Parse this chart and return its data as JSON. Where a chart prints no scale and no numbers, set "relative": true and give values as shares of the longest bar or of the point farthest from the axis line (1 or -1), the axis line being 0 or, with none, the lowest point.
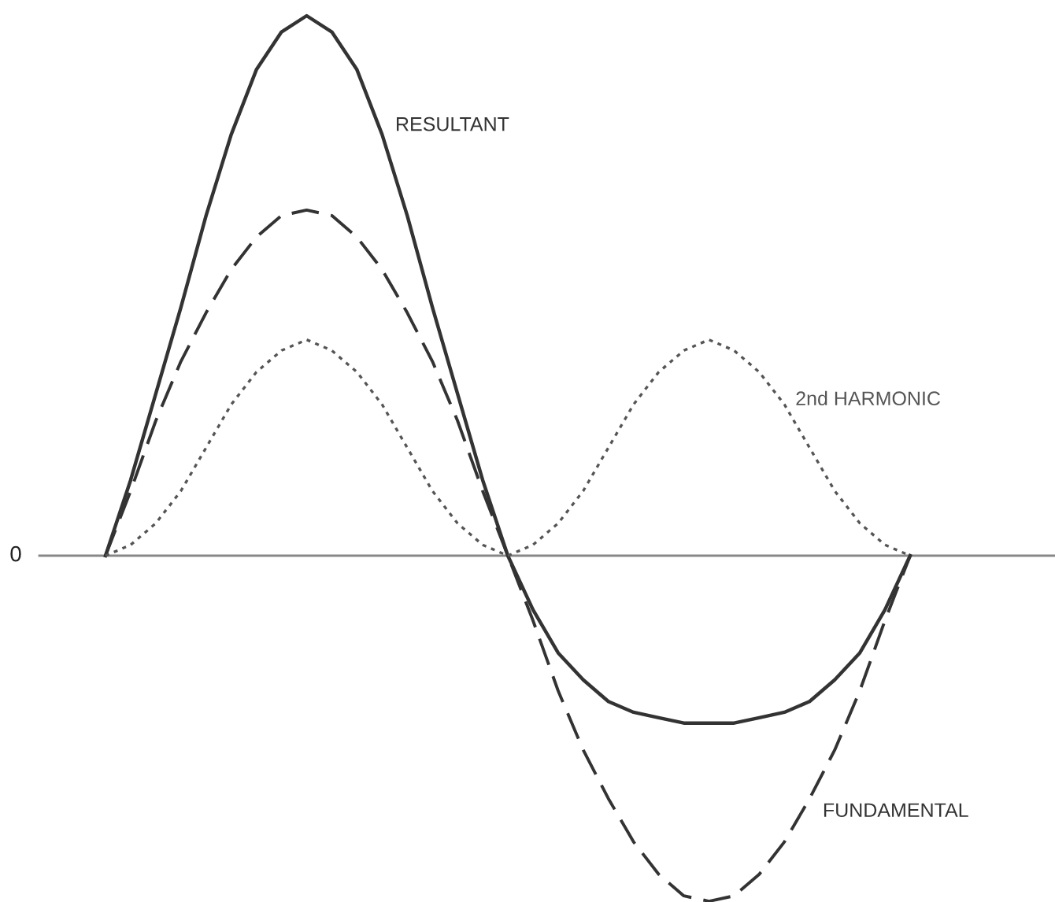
{
  "chart_data": {
    "type": "line",
    "relative": true,
    "legend": false,
    "categories": [
      null,
      null,
      null,
      null,
      null,
      null,
      null,
      null,
      null,
      null,
      null,
      null,
      null,
      null,
      null,
      null,
      null,
      null,
      null,
      null,
      null,
      null,
      null,
      null,
      null,
      null,
      null,
      null,
      null,
      null,
      null,
      null,
      null
    ],
    "series": [
      {
        "name": "RESULTANT",
        "color": "#333333",
        "line_style": "solid",
        "values": [
          0,
          0.14,
          0.3,
          0.46,
          0.63,
          0.78,
          0.9,
          0.97,
          1.0,
          0.97,
          0.9,
          0.78,
          0.63,
          0.46,
          0.3,
          0.14,
          0,
          -0.1,
          -0.18,
          -0.23,
          -0.27,
          -0.29,
          -0.3,
          -0.31,
          -0.31,
          -0.31,
          -0.3,
          -0.29,
          -0.27,
          -0.23,
          -0.18,
          -0.1,
          0
        ]
      },
      {
        "name": "FUNDAMENTAL",
        "color": "#333333",
        "line_style": "dashed",
        "values": [
          0,
          0.12,
          0.25,
          0.36,
          0.45,
          0.53,
          0.59,
          0.63,
          0.64,
          0.63,
          0.59,
          0.53,
          0.45,
          0.36,
          0.25,
          0.12,
          0,
          -0.12,
          -0.25,
          -0.36,
          -0.45,
          -0.53,
          -0.59,
          -0.63,
          -0.64,
          -0.63,
          -0.59,
          -0.53,
          -0.45,
          -0.36,
          -0.25,
          -0.12,
          0
        ]
      },
      {
        "name": "2nd HARMONIC",
        "color": "#555555",
        "line_style": "dotted",
        "values": [
          0,
          0.02,
          0.06,
          0.12,
          0.2,
          0.28,
          0.34,
          0.38,
          0.4,
          0.38,
          0.34,
          0.28,
          0.2,
          0.12,
          0.06,
          0.02,
          0,
          0.02,
          0.06,
          0.12,
          0.2,
          0.28,
          0.34,
          0.38,
          0.4,
          0.38,
          0.34,
          0.28,
          0.2,
          0.12,
          0.06,
          0.02,
          0
        ]
      }
    ],
    "ref_lines": [
      {
        "axis": "y",
        "value": 0,
        "label": "0",
        "color": "#888888"
      }
    ]
  }
}
